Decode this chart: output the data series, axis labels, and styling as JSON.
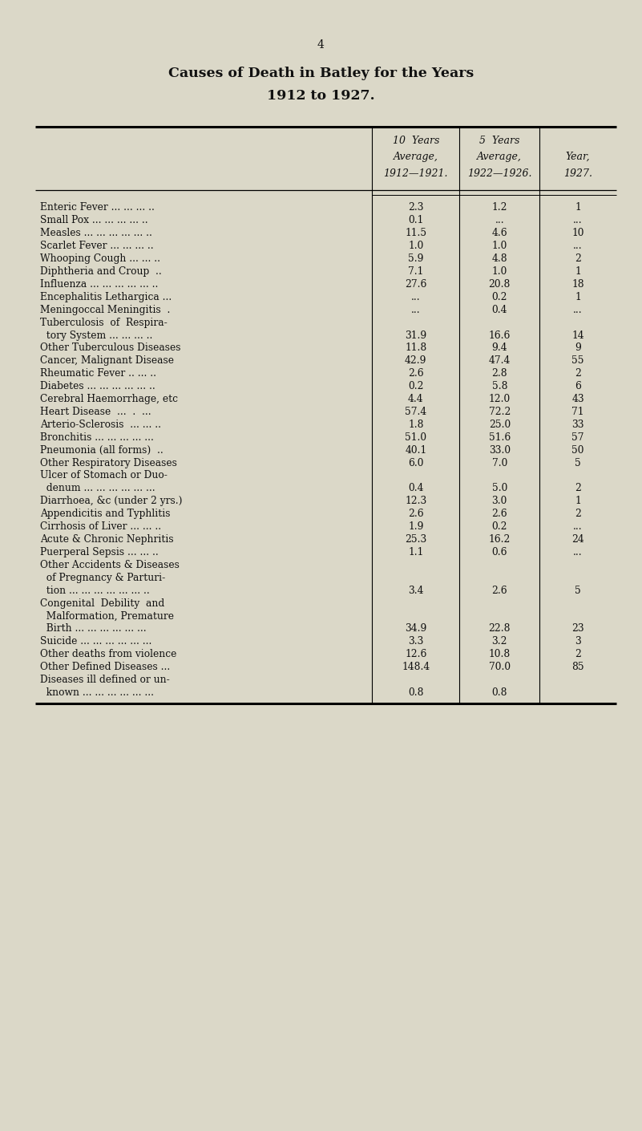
{
  "page_number": "4",
  "title_line1": "Causes of Death in Batley for the Years",
  "title_line2": "1912 to 1927.",
  "col_headers_line1": [
    "10  Years",
    "5  Years",
    ""
  ],
  "col_headers_line2": [
    "Average,",
    "Average,",
    "Year,"
  ],
  "col_headers_line3": [
    "1912—1921.",
    "1922—1926.",
    "1927."
  ],
  "rows": [
    {
      "label": "Enteric Fever ... ... ... ..",
      "v1": "2.3",
      "v2": "1.2",
      "v3": "1"
    },
    {
      "label": "Small Pox ... ... ... ... ..",
      "v1": "0.1",
      "v2": "...",
      "v3": "..."
    },
    {
      "label": "Measles ... ... ... ... ... ..",
      "v1": "11.5",
      "v2": "4.6",
      "v3": "10"
    },
    {
      "label": "Scarlet Fever ... ... ... ..",
      "v1": "1.0",
      "v2": "1.0",
      "v3": "..."
    },
    {
      "label": "Whooping Cough ... ... ..",
      "v1": "5.9",
      "v2": "4.8",
      "v3": "2"
    },
    {
      "label": "Diphtheria and Croup  ..",
      "v1": "7.1",
      "v2": "1.0",
      "v3": "1"
    },
    {
      "label": "Influenza ... ... ... ... ... ..",
      "v1": "27.6",
      "v2": "20.8",
      "v3": "18"
    },
    {
      "label": "Encephalitis Lethargica ...",
      "v1": "...",
      "v2": "0.2",
      "v3": "1"
    },
    {
      "label": "Meningoccal Meningitis  .",
      "v1": "...",
      "v2": "0.4",
      "v3": "..."
    },
    {
      "label": "Tuberculosis  of  Respira-",
      "v1": "",
      "v2": "",
      "v3": ""
    },
    {
      "label": "  tory System ... ... ... ..",
      "v1": "31.9",
      "v2": "16.6",
      "v3": "14"
    },
    {
      "label": "Other Tuberculous Diseases",
      "v1": "11.8",
      "v2": "9.4",
      "v3": "9"
    },
    {
      "label": "Cancer, Malignant Disease",
      "v1": "42.9",
      "v2": "47.4",
      "v3": "55"
    },
    {
      "label": "Rheumatic Fever .. ... ..",
      "v1": "2.6",
      "v2": "2.8",
      "v3": "2"
    },
    {
      "label": "Diabetes ... ... ... ... ... ..",
      "v1": "0.2",
      "v2": "5.8",
      "v3": "6"
    },
    {
      "label": "Cerebral Haemorrhage, etc",
      "v1": "4.4",
      "v2": "12.0",
      "v3": "43"
    },
    {
      "label": "Heart Disease  ...  .  ...",
      "v1": "57.4",
      "v2": "72.2",
      "v3": "71"
    },
    {
      "label": "Arterio-Sclerosis  ... ... ..",
      "v1": "1.8",
      "v2": "25.0",
      "v3": "33"
    },
    {
      "label": "Bronchitis ... ... ... ... ...",
      "v1": "51.0",
      "v2": "51.6",
      "v3": "57"
    },
    {
      "label": "Pneumonia (all forms)  ..",
      "v1": "40.1",
      "v2": "33.0",
      "v3": "50"
    },
    {
      "label": "Other Respiratory Diseases",
      "v1": "6.0",
      "v2": "7.0",
      "v3": "5"
    },
    {
      "label": "Ulcer of Stomach or Duo-",
      "v1": "",
      "v2": "",
      "v3": ""
    },
    {
      "label": "  denum ... ... ... ... ... ...",
      "v1": "0.4",
      "v2": "5.0",
      "v3": "2"
    },
    {
      "label": "Diarrhoea, &c (under 2 yrs.)",
      "v1": "12.3",
      "v2": "3.0",
      "v3": "1"
    },
    {
      "label": "Appendicitis and Typhlitis",
      "v1": "2.6",
      "v2": "2.6",
      "v3": "2"
    },
    {
      "label": "Cirrhosis of Liver ... ... ..",
      "v1": "1.9",
      "v2": "0.2",
      "v3": "..."
    },
    {
      "label": "Acute & Chronic Nephritis",
      "v1": "25.3",
      "v2": "16.2",
      "v3": "24"
    },
    {
      "label": "Puerperal Sepsis ... ... ..",
      "v1": "1.1",
      "v2": "0.6",
      "v3": "..."
    },
    {
      "label": "Other Accidents & Diseases",
      "v1": "",
      "v2": "",
      "v3": ""
    },
    {
      "label": "  of Pregnancy & Parturi-",
      "v1": "",
      "v2": "",
      "v3": ""
    },
    {
      "label": "  tion ... ... ... ... ... ... ..",
      "v1": "3.4",
      "v2": "2.6",
      "v3": "5"
    },
    {
      "label": "Congenital  Debility  and",
      "v1": "",
      "v2": "",
      "v3": ""
    },
    {
      "label": "  Malformation, Premature",
      "v1": "",
      "v2": "",
      "v3": ""
    },
    {
      "label": "  Birth ... ... ... ... ... ...",
      "v1": "34.9",
      "v2": "22.8",
      "v3": "23"
    },
    {
      "label": "Suicide ... ... ... ... ... ...",
      "v1": "3.3",
      "v2": "3.2",
      "v3": "3"
    },
    {
      "label": "Other deaths from violence",
      "v1": "12.6",
      "v2": "10.8",
      "v3": "2"
    },
    {
      "label": "Other Defined Diseases ...",
      "v1": "148.4",
      "v2": "70.0",
      "v3": "85"
    },
    {
      "label": "Diseases ill defined or un-",
      "v1": "",
      "v2": "",
      "v3": ""
    },
    {
      "label": "  known ... ... ... ... ... ...",
      "v1": "0.8",
      "v2": "0.8",
      "v3": ""
    }
  ],
  "bg_color": "#dbd8c8",
  "text_color": "#111111",
  "title_fontsize": 12.5,
  "page_num_fontsize": 10,
  "header_fontsize": 9.0,
  "row_fontsize": 8.8
}
